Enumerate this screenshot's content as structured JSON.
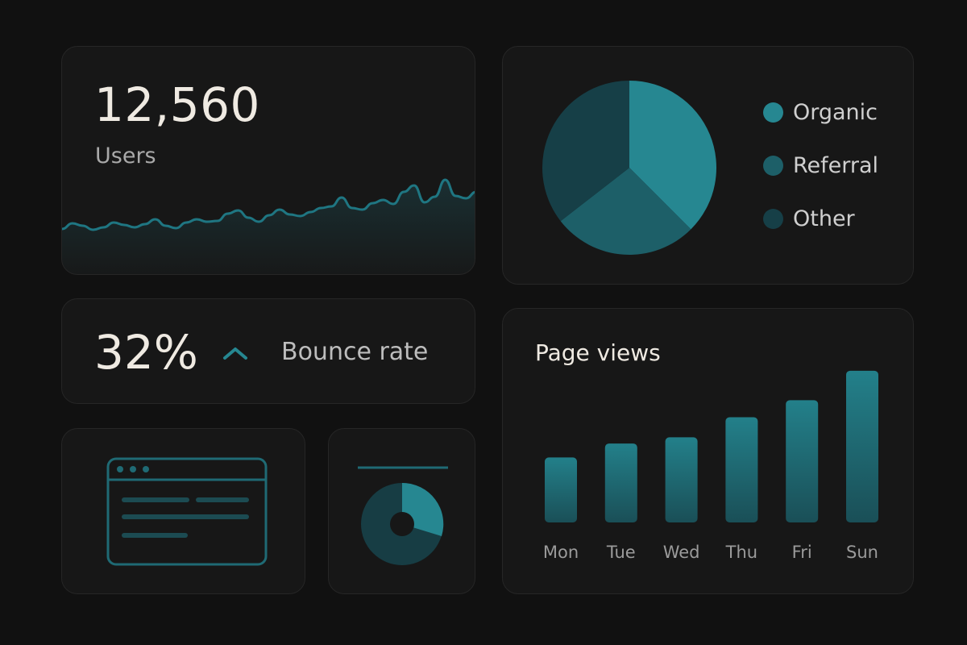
{
  "users_card": {
    "value": "12,560",
    "label": "Users",
    "sparkline": [
      34,
      41,
      38,
      33,
      36,
      42,
      39,
      36,
      40,
      46,
      38,
      35,
      42,
      46,
      43,
      44,
      53,
      57,
      48,
      43,
      51,
      58,
      52,
      50,
      55,
      60,
      62,
      73,
      60,
      58,
      66,
      70,
      65,
      80,
      88,
      67,
      74,
      95,
      75,
      72,
      80
    ]
  },
  "traffic_sources": {
    "legend": [
      {
        "label": "Organic",
        "color": "#268791"
      },
      {
        "label": "Referral",
        "color": "#1d5f68"
      },
      {
        "label": "Other",
        "color": "#163f47"
      }
    ],
    "slices": [
      {
        "name": "Organic",
        "value": 0.375,
        "color": "#268791"
      },
      {
        "name": "Referral",
        "value": 0.27,
        "color": "#1d5f68"
      },
      {
        "name": "Other",
        "value": 0.355,
        "color": "#163f47"
      }
    ]
  },
  "bounce_card": {
    "value": "32%",
    "label": "Bounce rate",
    "trend_icon": "chevron-up-icon"
  },
  "page_views": {
    "title": "Page views",
    "chart_data": {
      "type": "bar",
      "categories": [
        "Mon",
        "Tue",
        "Wed",
        "Thu",
        "Fri",
        "Sun"
      ],
      "values": [
        42,
        51,
        55,
        68,
        79,
        98
      ],
      "ylim": [
        0,
        100
      ],
      "grid": false
    }
  },
  "theme": {
    "accent": "#268791",
    "accent_dark": "#1d5f68",
    "background": "#111111",
    "card": "#171717"
  }
}
